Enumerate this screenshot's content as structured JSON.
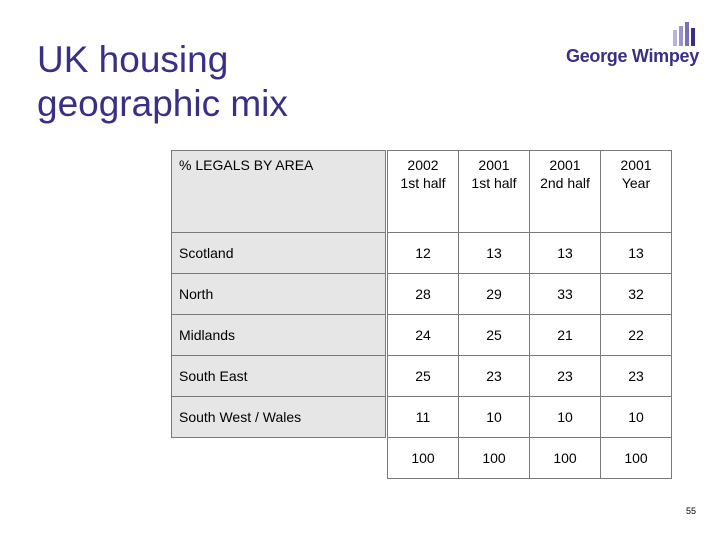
{
  "slide": {
    "title_lines": [
      "UK housing",
      "geographic mix"
    ],
    "page_number": "55"
  },
  "logo": {
    "text": "George Wimpey",
    "mark_colors": [
      "#b9b3d9",
      "#7a70b8",
      "#3a2f86"
    ]
  },
  "table": {
    "header_label": "% LEGALS BY AREA",
    "columns": [
      {
        "line1": "2002",
        "line2": "1st half"
      },
      {
        "line1": "2001",
        "line2": "1st half"
      },
      {
        "line1": "2001",
        "line2": "2nd half"
      },
      {
        "line1": "2001",
        "line2": "Year"
      }
    ],
    "rows": [
      {
        "label": "Scotland",
        "values": [
          "12",
          "13",
          "13",
          "13"
        ]
      },
      {
        "label": "North",
        "values": [
          "28",
          "29",
          "33",
          "32"
        ]
      },
      {
        "label": "Midlands",
        "values": [
          "24",
          "25",
          "21",
          "22"
        ]
      },
      {
        "label": "South East",
        "values": [
          "25",
          "23",
          "23",
          "23"
        ]
      },
      {
        "label": "South West / Wales",
        "values": [
          "11",
          "10",
          "10",
          "10"
        ]
      }
    ],
    "totals": [
      "100",
      "100",
      "100",
      "100"
    ]
  }
}
